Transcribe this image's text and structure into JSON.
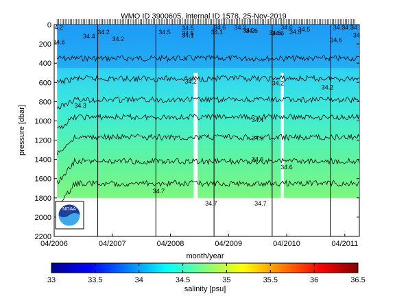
{
  "chart_data": {
    "type": "heatmap",
    "title": "WMO ID 3900605, internal ID 1578, 25-Nov-2019",
    "xlabel": "month/year",
    "ylabel": "pressure [dbar]",
    "x_tick_labels": [
      "04/2006",
      "04/2007",
      "04/2008",
      "04/2009",
      "04/2010",
      "04/2011"
    ],
    "x_range_years": [
      2006.25,
      2011.5
    ],
    "y_ticks": [
      0,
      200,
      400,
      600,
      800,
      1000,
      1200,
      1400,
      1600,
      1800,
      2000,
      2200
    ],
    "y_range": [
      2200,
      0
    ],
    "y_inverted": true,
    "colorbar": {
      "label": "salinity [psu]",
      "ticks": [
        33,
        33.5,
        34,
        34.5,
        35,
        35.5,
        36,
        36.5
      ],
      "range": [
        33,
        36.5
      ],
      "colormap": "jet"
    },
    "grid": false,
    "profile_marks_top": true,
    "year_separator_years": [
      2007,
      2008,
      2009,
      2010,
      2011
    ],
    "data_gaps_years": [
      [
        2008.65,
        2008.72
      ],
      [
        2010.15,
        2010.2
      ]
    ],
    "profile_max_pressure_dbar": 1800,
    "contours": [
      {
        "level": 34.2,
        "approx_depth_dbar": 350
      },
      {
        "level": 34.3,
        "approx_depth_dbar": 560
      },
      {
        "level": 34.4,
        "approx_depth_dbar": 780
      },
      {
        "level": 34.5,
        "approx_depth_dbar": 960
      },
      {
        "level": 34.6,
        "approx_depth_dbar": 1170
      },
      {
        "level": 34.65,
        "approx_depth_dbar": 1420
      },
      {
        "level": 34.7,
        "approx_depth_dbar": 1650
      }
    ],
    "contour_labels": [
      {
        "text": "34.2",
        "x": 2006.3,
        "y": 30
      },
      {
        "text": "34.6",
        "x": 2006.33,
        "y": 180
      },
      {
        "text": "34.4",
        "x": 2006.85,
        "y": 120
      },
      {
        "text": "34.2",
        "x": 2007.1,
        "y": 80
      },
      {
        "text": "34.2",
        "x": 2007.35,
        "y": 150
      },
      {
        "text": "34.5",
        "x": 2008.15,
        "y": 80
      },
      {
        "text": "34.5",
        "x": 2008.55,
        "y": 35
      },
      {
        "text": "34.5",
        "x": 2008.55,
        "y": 90
      },
      {
        "text": "34.1",
        "x": 2008.55,
        "y": 110
      },
      {
        "text": "34.6",
        "x": 2009.1,
        "y": 30
      },
      {
        "text": "34.1",
        "x": 2009.05,
        "y": 80
      },
      {
        "text": "34.2",
        "x": 2009.45,
        "y": 30
      },
      {
        "text": "34.2",
        "x": 2009.6,
        "y": 60
      },
      {
        "text": "34.6",
        "x": 2009.65,
        "y": 65
      },
      {
        "text": "34.6",
        "x": 2010.25,
        "y": 30
      },
      {
        "text": "34.6",
        "x": 2010.1,
        "y": 90
      },
      {
        "text": "34.5",
        "x": 2010.55,
        "y": 50
      },
      {
        "text": "34.5",
        "x": 2010.4,
        "y": 75
      },
      {
        "text": "34.6",
        "x": 2010.05,
        "y": 85
      },
      {
        "text": "34.5",
        "x": 2011.15,
        "y": 30
      },
      {
        "text": "34.5",
        "x": 2011.3,
        "y": 30
      },
      {
        "text": "34.6",
        "x": 2011.1,
        "y": 160
      },
      {
        "text": "34",
        "x": 2011.45,
        "y": 110
      },
      {
        "text": "34.1",
        "x": 2011.45,
        "y": 30
      },
      {
        "text": "34.2",
        "x": 2008.6,
        "y": 590
      },
      {
        "text": "34.2",
        "x": 2010.1,
        "y": 610
      },
      {
        "text": "34.2",
        "x": 2010.95,
        "y": 650
      },
      {
        "text": "34.3",
        "x": 2006.7,
        "y": 840
      },
      {
        "text": "34.4",
        "x": 2009.75,
        "y": 990
      },
      {
        "text": "34.6",
        "x": 2009.75,
        "y": 1180
      },
      {
        "text": "34.6",
        "x": 2009.75,
        "y": 1400
      },
      {
        "text": "34.6",
        "x": 2010.25,
        "y": 1480
      },
      {
        "text": "34.7",
        "x": 2008.05,
        "y": 1730
      },
      {
        "text": "34.7",
        "x": 2008.95,
        "y": 1860
      },
      {
        "text": "34.7",
        "x": 2009.8,
        "y": 1860
      }
    ]
  },
  "logo": {
    "text": "NOAA"
  }
}
